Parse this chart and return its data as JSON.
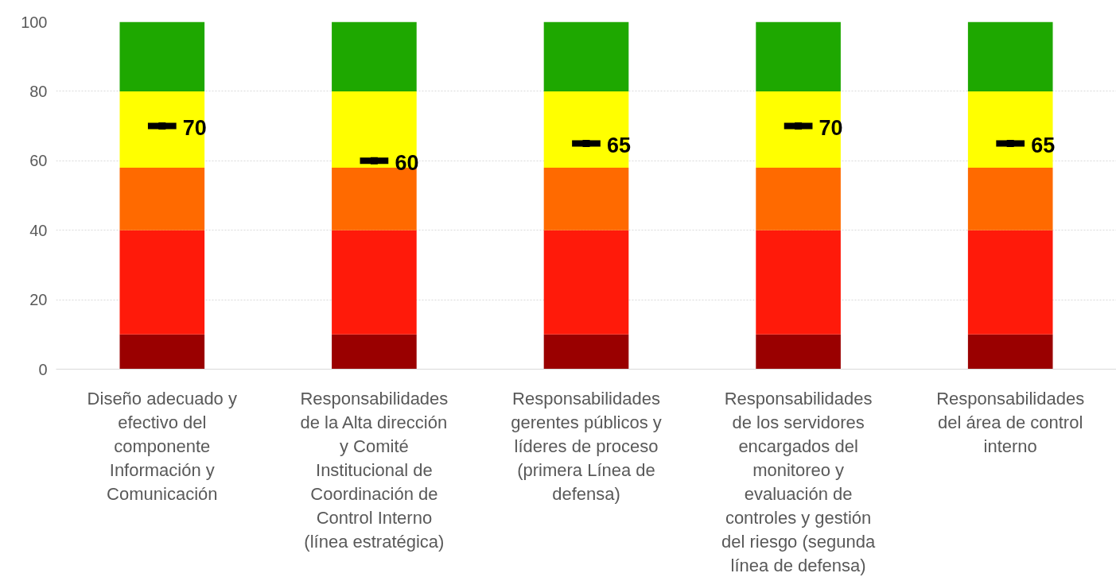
{
  "chart_data": {
    "type": "bar",
    "stacked": true,
    "categories": [
      "Diseño adecuado y\nefectivo del\ncomponente\nInformación y\nComunicación",
      "Responsabilidades\nde la Alta dirección\ny Comité\nInstitucional de\nCoordinación de\nControl Interno\n(línea estratégica)",
      "Responsabilidades\ngerentes públicos y\nlíderes de proceso\n(primera Línea de\ndefensa)",
      "Responsabilidades\nde los servidores\nencargados del\nmonitoreo y\nevaluación de\ncontroles y gestión\ndel riesgo (segunda\nlínea de defensa)",
      "Responsabilidades\ndel área de control\ninterno"
    ],
    "series": [
      {
        "color": "#9a0000",
        "values": [
          10,
          10,
          10,
          10,
          10
        ]
      },
      {
        "color": "#ff1a0a",
        "values": [
          30,
          30,
          30,
          30,
          30
        ]
      },
      {
        "color": "#ff6a00",
        "values": [
          18,
          18,
          18,
          18,
          18
        ]
      },
      {
        "color": "#ffff00",
        "values": [
          22,
          22,
          22,
          22,
          22
        ]
      },
      {
        "color": "#1ea800",
        "values": [
          20,
          20,
          20,
          20,
          20
        ]
      },
      {
        "type": "scatter",
        "marker": "square",
        "color": "#000000",
        "values": [
          70,
          60,
          65,
          70,
          65
        ],
        "value_labels": [
          "70",
          "60",
          "65",
          "70",
          "65"
        ]
      }
    ],
    "ylim": [
      0,
      100
    ],
    "yticks": [
      0,
      20,
      40,
      60,
      80,
      100
    ],
    "grid": "y"
  }
}
